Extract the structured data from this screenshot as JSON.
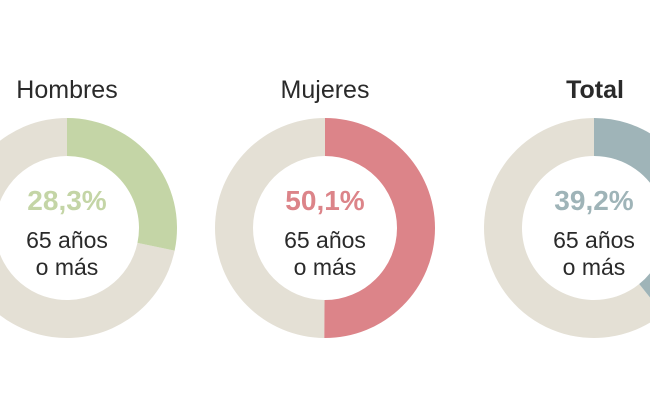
{
  "colors": {
    "track": "#e4e0d5",
    "background": "#ffffff",
    "label_text": "#2a2a2a"
  },
  "chart_data": [
    {
      "type": "pie",
      "title": "Hombres",
      "title_bold": false,
      "value": 28.3,
      "value_label": "28,3%",
      "caption_line1": "65 años",
      "caption_line2": "o más",
      "color": "#c4d5a6"
    },
    {
      "type": "pie",
      "title": "Mujeres",
      "title_bold": false,
      "value": 50.1,
      "value_label": "50,1%",
      "caption_line1": "65 años",
      "caption_line2": "o más",
      "color": "#dc8489"
    },
    {
      "type": "pie",
      "title": "Total",
      "title_bold": true,
      "value": 39.2,
      "value_label": "39,2%",
      "caption_line1": "65 años",
      "caption_line2": "o más",
      "color": "#9fb4b8"
    }
  ]
}
